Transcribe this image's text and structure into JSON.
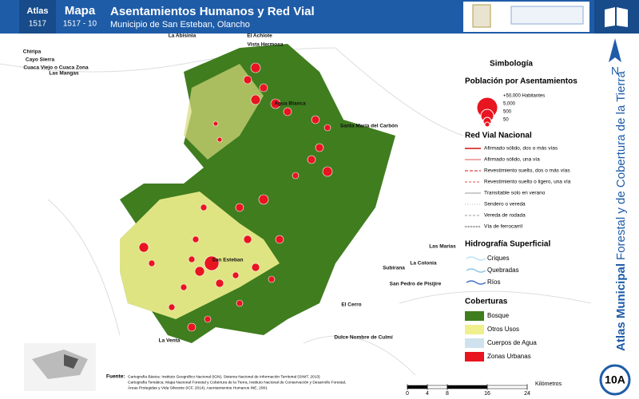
{
  "header": {
    "atlas_label": "Atlas",
    "atlas_code": "1517",
    "map_label": "Mapa",
    "map_code": "1517 - 10",
    "title": "Asentamientos Humanos y Red Vial",
    "subtitle": "Municipio de San Esteban, Olancho"
  },
  "side": {
    "title_bold": "Atlas Municipal",
    "title_rest": "Forestal y de Cobertura de la Tierra",
    "north": "N",
    "sheet": "10A"
  },
  "places": [
    "La Abisinia",
    "El Achiote",
    "Vista Hermosa",
    "Chiripa",
    "Cayo Sierra",
    "Cuaca Viejo o Cuaca Zona",
    "Las Mangas",
    "Santa María del Carbón",
    "Agua Blanca",
    "San Esteban",
    "Las Marias",
    "Subirana",
    "La Colonia",
    "San Pedro de Pisijire",
    "El Cerro",
    "Dulce Nombre de Culmí",
    "La Venta"
  ],
  "legend": {
    "title": "Simbología",
    "population": {
      "title": "Población por Asentamientos",
      "sizes": [
        "+50,000 Habitantes",
        "5,000",
        "500",
        "50"
      ]
    },
    "roads": {
      "title": "Red Vial Nacional",
      "items": [
        "Afirmado sólido, dos o más vías",
        "Afirmado sólido, una vía",
        "Revestimiento suelto, dos o más vías",
        "Revestimiento suelto o ligero, una vía",
        "Transitable solo en verano",
        "Sendero o vereda",
        "Vereda de rodada",
        "Vía de ferrocarril"
      ]
    },
    "hydro": {
      "title": "Hidrografía Superficial",
      "items": [
        "Criques",
        "Quebradas",
        "Ríos"
      ]
    },
    "cover": {
      "title": "Coberturas",
      "items": [
        "Bosque",
        "Otros Usos",
        "Cuerpos de Agua",
        "Zonas Urbanas"
      ]
    }
  },
  "source": {
    "label": "Fuente:",
    "lines": [
      "Cartografía Básica: Instituto Geográfico Nacional (IGN), Sistema Nacional de Información Territorial (SINIT, 2013)",
      "Cartografía Temática: Mapa Nacional Forestal y Cobertura de la Tierra, Instituto Nacional de Conservación y Desarrollo Forestal,",
      "Áreas Protegidas y Vida Silvestre (ICF, 2014), Asentamientos Humanos INE, 2001"
    ]
  },
  "scale": {
    "ticks": [
      0,
      4,
      8,
      16,
      24
    ],
    "unit": "Kilómetros"
  }
}
